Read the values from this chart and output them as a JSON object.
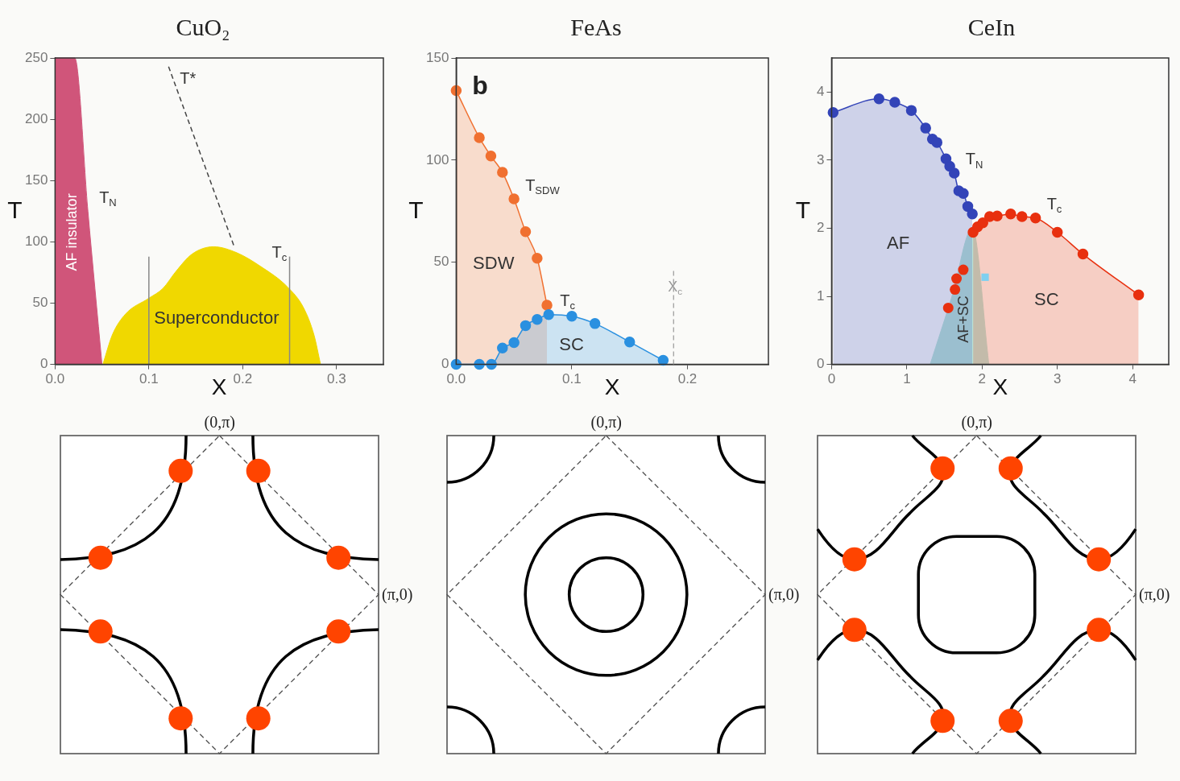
{
  "chart_data": [
    {
      "type": "area",
      "title": "CuO₂",
      "xlabel": "X",
      "ylabel": "T",
      "legend": false,
      "xlim": [
        0,
        0.35
      ],
      "ylim": [
        0,
        250
      ],
      "xticks": [
        {
          "value": 0,
          "label": "0.0"
        },
        {
          "value": 0.1,
          "label": "0.1"
        },
        {
          "value": 0.2,
          "label": "0.2"
        },
        {
          "value": 0.3,
          "label": "0.3"
        }
      ],
      "yticks": [
        0,
        50,
        100,
        150,
        200,
        250
      ],
      "series": [
        {
          "type": "area",
          "name": "T$_{N}$",
          "color": "#d0557a",
          "x": [
            0,
            0.021,
            0.035,
            0.05
          ],
          "values": [
            250,
            250,
            125,
            0
          ]
        },
        {
          "type": "area",
          "name": "T$_{c}$",
          "color": "#f0d800",
          "x": [
            0.051,
            0.061,
            0.075,
            0.1,
            0.115,
            0.129,
            0.146,
            0.169,
            0.194,
            0.219,
            0.248,
            0.265,
            0.276,
            0.283
          ],
          "values": [
            0,
            24,
            41,
            54,
            62,
            76,
            90,
            96,
            91,
            80,
            63,
            46,
            24,
            0
          ]
        },
        {
          "type": "line",
          "color": "#888888",
          "x": [
            0.1,
            0.1
          ],
          "values": [
            0,
            88
          ]
        },
        {
          "type": "line",
          "color": "#888888",
          "x": [
            0.25,
            0.25
          ],
          "values": [
            0,
            88
          ]
        },
        {
          "type": "line",
          "name": "T*",
          "color": "#444444",
          "line_style": "dashed",
          "x": [
            0.121,
            0.191
          ],
          "values": [
            243,
            96
          ]
        }
      ],
      "annotations": [
        "AF insulator",
        "Superconductor"
      ]
    },
    {
      "type": "area",
      "title": "FeAs",
      "xlabel": "X",
      "ylabel": "T",
      "legend": false,
      "xlim": [
        0,
        0.27
      ],
      "ylim": [
        0,
        150
      ],
      "xticks": [
        {
          "value": 0,
          "label": "0.0"
        },
        {
          "value": 0.1,
          "label": "0.1"
        },
        {
          "value": 0.2,
          "label": "0.2"
        }
      ],
      "yticks": [
        0,
        50,
        100,
        150
      ],
      "series": [
        {
          "type": "area",
          "name": "T$_{SDW}$",
          "marker": "circle",
          "color": "#f07030",
          "x": [
            0,
            0.02,
            0.03,
            0.04,
            0.05,
            0.06,
            0.07,
            0.0785
          ],
          "values": [
            134,
            111,
            102,
            94,
            81,
            65,
            52,
            29
          ]
        },
        {
          "type": "area",
          "name": "T$_{c}$",
          "marker": "circle",
          "color": "#2a90e0",
          "x": [
            0,
            0.02,
            0.0305,
            0.04,
            0.05,
            0.06,
            0.07,
            0.08,
            0.1,
            0.12,
            0.15,
            0.179
          ],
          "values": [
            0,
            0,
            0,
            8,
            10.7,
            19,
            22,
            24.4,
            23.6,
            20,
            11,
            2
          ]
        }
      ],
      "ref_lines": [
        {
          "axis": "x",
          "value": 0.188,
          "label": "X$_{c}$",
          "color": "#999999",
          "line_style": "dashed"
        }
      ],
      "annotations": [
        "SDW",
        "SC",
        "b"
      ]
    },
    {
      "type": "area",
      "title": "CeIn",
      "xlabel": "X",
      "ylabel": "T",
      "legend": false,
      "xlim": [
        0,
        4.48
      ],
      "ylim": [
        0,
        4.5
      ],
      "xticks": [
        0,
        1,
        2,
        3,
        4
      ],
      "yticks": [
        0,
        1,
        2,
        3,
        4
      ],
      "series": [
        {
          "type": "area",
          "color": "#b9e2d6",
          "x": [
            1.31,
            1.6,
            1.87,
            2.09
          ],
          "values": [
            0,
            1.0,
            2.0,
            0
          ]
        },
        {
          "type": "area",
          "name": "T$_{N}$",
          "marker": "circle",
          "color": "#3344b8",
          "x": [
            0.02,
            0.63,
            0.84,
            1.06,
            1.25,
            1.34,
            1.4,
            1.52,
            1.57,
            1.63,
            1.69,
            1.75,
            1.81,
            1.87
          ],
          "values": [
            3.7,
            3.9,
            3.85,
            3.73,
            3.47,
            3.31,
            3.26,
            3.02,
            2.91,
            2.81,
            2.55,
            2.51,
            2.32,
            2.21
          ]
        },
        {
          "type": "area",
          "name": "T$_{c}$",
          "marker": "circle",
          "color": "#e8300f",
          "x": [
            1.88,
            1.94,
            2.01,
            2.1,
            2.2,
            2.38,
            2.53,
            2.71,
            3.0,
            3.34,
            4.08
          ],
          "values": [
            1.94,
            2.02,
            2.08,
            2.17,
            2.18,
            2.21,
            2.17,
            2.15,
            1.94,
            1.62,
            1.02
          ]
        },
        {
          "type": "scatter",
          "marker": "circle",
          "color": "#e8300f",
          "x": [
            1.55,
            1.64,
            1.66,
            1.75
          ],
          "values": [
            0.83,
            1.1,
            1.26,
            1.39
          ]
        },
        {
          "type": "scatter",
          "marker": "square",
          "color": "#7fd0f0",
          "x": [
            2.04
          ],
          "values": [
            1.28
          ]
        }
      ],
      "annotations": [
        "AF+SC",
        "AF",
        "SC"
      ]
    },
    {
      "type": "other",
      "annotations": [
        "(0,π)",
        "(π,0)"
      ]
    },
    {
      "type": "other",
      "annotations": [
        "(0,π)",
        "(π,0)"
      ]
    },
    {
      "type": "other",
      "annotations": [
        "(0,π)",
        "(π,0)"
      ]
    }
  ]
}
